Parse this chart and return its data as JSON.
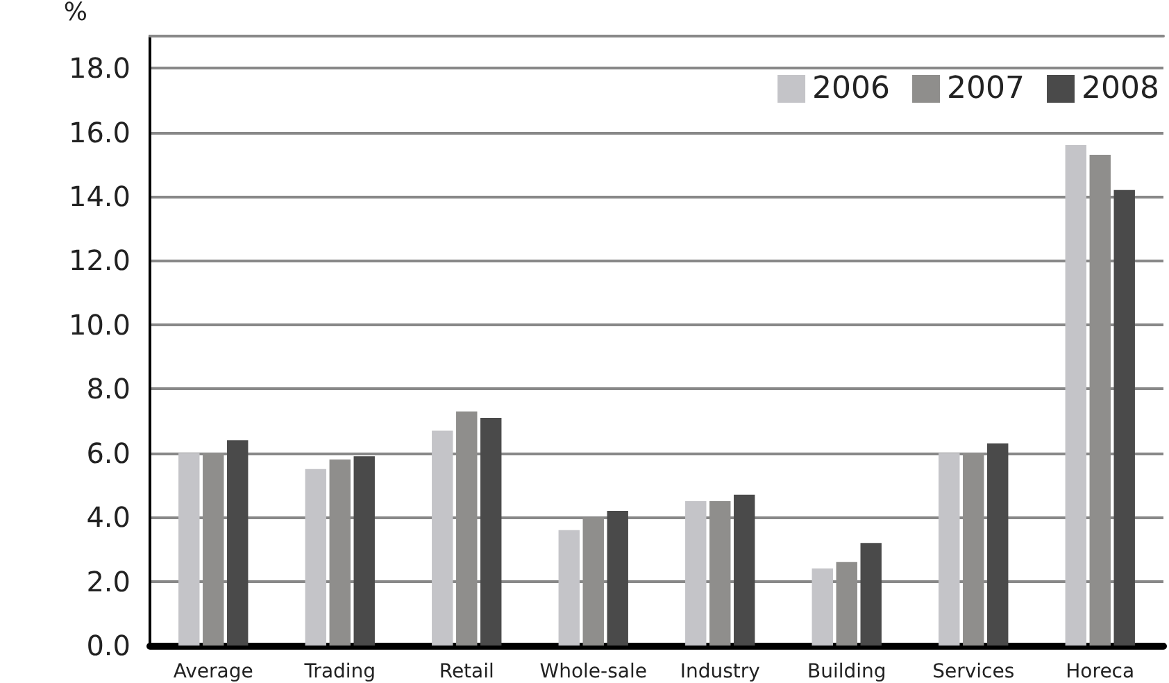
{
  "chart_data": {
    "type": "bar",
    "ylabel": "%",
    "categories": [
      "Average",
      "Trading",
      "Retail",
      "Whole-sale",
      "Industry",
      "Building",
      "Services",
      "Horeca"
    ],
    "series": [
      {
        "name": "2006",
        "color": "#c4c4c8",
        "values": [
          6.0,
          5.5,
          6.7,
          3.6,
          4.5,
          2.4,
          6.0,
          15.6
        ]
      },
      {
        "name": "2007",
        "color": "#8f8e8c",
        "values": [
          6.0,
          5.8,
          7.3,
          4.0,
          4.5,
          2.6,
          6.0,
          15.3
        ]
      },
      {
        "name": "2008",
        "color": "#4a4a4a",
        "values": [
          6.4,
          5.9,
          7.1,
          4.2,
          4.7,
          3.2,
          6.3,
          14.2
        ]
      }
    ],
    "ylim": [
      0,
      19
    ],
    "yticks": [
      {
        "value": 0,
        "label": "0.0"
      },
      {
        "value": 2,
        "label": "2.0"
      },
      {
        "value": 4,
        "label": "4.0"
      },
      {
        "value": 6,
        "label": "6.0"
      },
      {
        "value": 8,
        "label": "8.0"
      },
      {
        "value": 10,
        "label": "10.0"
      },
      {
        "value": 12,
        "label": "12.0"
      },
      {
        "value": 14,
        "label": "14.0"
      },
      {
        "value": 16,
        "label": "16.0"
      },
      {
        "value": 18,
        "label": "18.0"
      }
    ],
    "grid": "y",
    "legend": "top right"
  }
}
